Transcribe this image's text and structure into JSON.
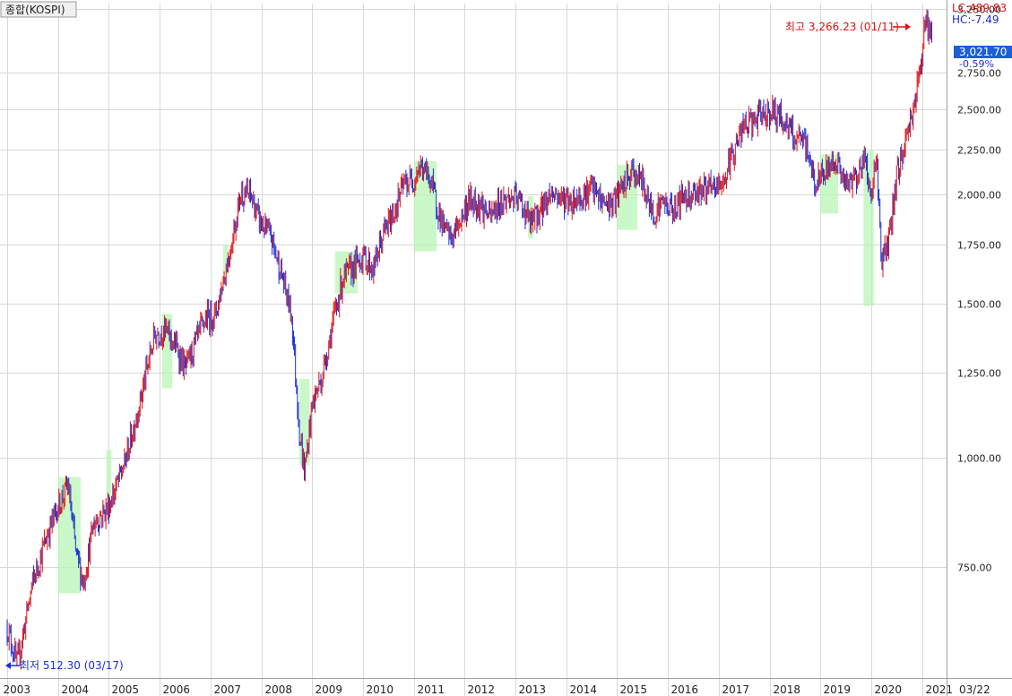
{
  "header": {
    "title": "종합(KOSPI)",
    "lc": "LC:489.83",
    "hc": "HC:-7.49",
    "last_value": "3,021.70",
    "change_pct": "-0.59%",
    "high_label": "최고 3,266.23 (01/11)",
    "low_label": "최저 512.30 (03/17)",
    "current_date": "03/22"
  },
  "colors": {
    "up": "#e01010",
    "down": "#1a2fd6",
    "zone": "#b9f5b6",
    "last_box": "#1a5fd6"
  },
  "chart_data": {
    "type": "line",
    "scale": "log",
    "ylim": [
      560,
      3300
    ],
    "yticks": [
      {
        "value": 750,
        "label": "750.00"
      },
      {
        "value": 1000,
        "label": "1,000.00"
      },
      {
        "value": 1250,
        "label": "1,250.00"
      },
      {
        "value": 1500,
        "label": "1,500.00"
      },
      {
        "value": 1750,
        "label": "1,750.00"
      },
      {
        "value": 2000,
        "label": "2,000.00"
      },
      {
        "value": 2250,
        "label": "2,250.00"
      },
      {
        "value": 2500,
        "label": "2,500.00"
      },
      {
        "value": 2750,
        "label": "2,750.00"
      },
      {
        "value": 3250,
        "label": "3,250.00"
      }
    ],
    "xticks": [
      "2003",
      "2004",
      "2005",
      "2006",
      "2007",
      "2008",
      "2009",
      "2010",
      "2011",
      "2012",
      "2013",
      "2014",
      "2015",
      "2016",
      "2017",
      "2018",
      "2019",
      "2020",
      "2021"
    ],
    "x_start_year": 2003.0,
    "x": [
      2003.0,
      2003.2,
      2003.5,
      2003.8,
      2004.0,
      2004.2,
      2004.35,
      2004.5,
      2004.7,
      2005.0,
      2005.3,
      2005.6,
      2005.9,
      2006.1,
      2006.35,
      2006.5,
      2006.7,
      2006.9,
      2007.1,
      2007.4,
      2007.6,
      2007.8,
      2007.95,
      2008.2,
      2008.4,
      2008.6,
      2008.75,
      2008.85,
      2009.0,
      2009.2,
      2009.4,
      2009.6,
      2009.8,
      2010.0,
      2010.2,
      2010.4,
      2010.6,
      2010.8,
      2011.0,
      2011.1,
      2011.3,
      2011.5,
      2011.6,
      2011.75,
      2011.9,
      2012.1,
      2012.3,
      2012.5,
      2012.7,
      2012.9,
      2013.1,
      2013.3,
      2013.5,
      2013.7,
      2013.9,
      2014.1,
      2014.3,
      2014.5,
      2014.7,
      2014.9,
      2015.1,
      2015.3,
      2015.5,
      2015.7,
      2015.9,
      2016.1,
      2016.3,
      2016.5,
      2016.7,
      2016.9,
      2017.1,
      2017.3,
      2017.5,
      2017.7,
      2017.9,
      2018.1,
      2018.3,
      2018.5,
      2018.7,
      2018.9,
      2019.1,
      2019.3,
      2019.5,
      2019.7,
      2019.9,
      2020.0,
      2020.1,
      2020.2,
      2020.35,
      2020.5,
      2020.7,
      2020.9,
      2021.0,
      2021.05,
      2021.2
    ],
    "y": [
      640,
      580,
      720,
      820,
      880,
      930,
      780,
      720,
      840,
      880,
      980,
      1150,
      1380,
      1400,
      1330,
      1260,
      1350,
      1440,
      1460,
      1740,
      2010,
      1990,
      1870,
      1780,
      1620,
      1450,
      1070,
      960,
      1150,
      1240,
      1420,
      1600,
      1650,
      1700,
      1640,
      1800,
      1900,
      2050,
      2080,
      2150,
      2100,
      1900,
      1820,
      1780,
      1860,
      1970,
      1950,
      1880,
      1960,
      1980,
      1960,
      1850,
      1920,
      2010,
      1980,
      1960,
      1990,
      2030,
      1960,
      1940,
      2030,
      2120,
      2060,
      1900,
      1960,
      1920,
      1990,
      2010,
      2030,
      2020,
      2070,
      2250,
      2390,
      2420,
      2480,
      2480,
      2420,
      2310,
      2290,
      2050,
      2120,
      2200,
      2040,
      2100,
      2200,
      1950,
      2250,
      1680,
      1760,
      2100,
      2330,
      2630,
      2890,
      3180,
      3020
    ]
  },
  "zones": [
    {
      "x0": 2004.0,
      "x1": 2004.45,
      "y0": 700,
      "y1": 950
    },
    {
      "x0": 2004.95,
      "x1": 2005.05,
      "y0": 900,
      "y1": 1020
    },
    {
      "x0": 2006.05,
      "x1": 2006.25,
      "y0": 1200,
      "y1": 1460
    },
    {
      "x0": 2007.25,
      "x1": 2007.35,
      "y0": 1620,
      "y1": 1750
    },
    {
      "x0": 2008.75,
      "x1": 2008.95,
      "y0": 980,
      "y1": 1230
    },
    {
      "x0": 2009.45,
      "x1": 2009.9,
      "y0": 1540,
      "y1": 1720
    },
    {
      "x0": 2011.0,
      "x1": 2011.45,
      "y0": 1720,
      "y1": 2180
    },
    {
      "x0": 2013.25,
      "x1": 2013.35,
      "y0": 1780,
      "y1": 1990
    },
    {
      "x0": 2015.0,
      "x1": 2015.4,
      "y0": 1820,
      "y1": 2160
    },
    {
      "x0": 2019.0,
      "x1": 2019.35,
      "y0": 1900,
      "y1": 2220
    },
    {
      "x0": 2019.85,
      "x1": 2020.05,
      "y0": 1490,
      "y1": 2240
    }
  ]
}
